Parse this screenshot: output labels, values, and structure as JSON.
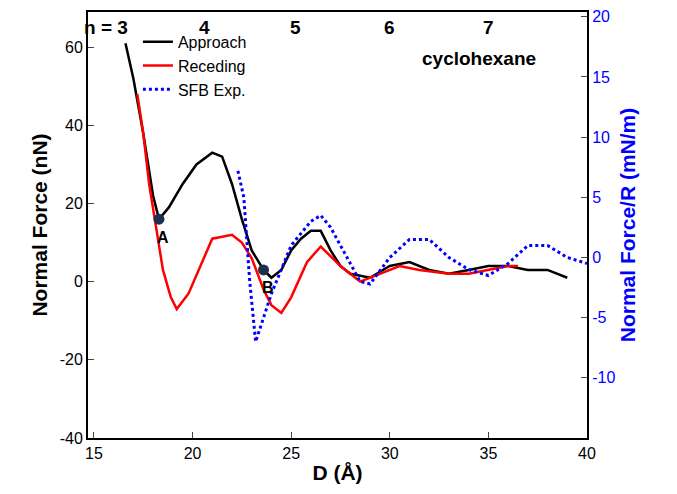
{
  "chart_data": {
    "type": "line",
    "x_label": "D (Å)",
    "y_label": "Normal Force (nN)",
    "y2_label": "Normal Force/R (mN/m)",
    "xlim": [
      14.7,
      40
    ],
    "xticks": [
      15,
      20,
      25,
      30,
      35,
      40
    ],
    "ylim": [
      -40,
      69
    ],
    "yticks": [
      -40,
      -20,
      0,
      20,
      40,
      60
    ],
    "y2lim": [
      -15,
      20.4
    ],
    "y2ticks": [
      -10,
      -5,
      0,
      5,
      10,
      15,
      20
    ],
    "grid": false,
    "legend": "top left",
    "series": [
      {
        "name": "Approach",
        "color": "#000000",
        "line_style": "solid",
        "x": [
          16.6,
          17.0,
          17.5,
          18.0,
          18.3,
          18.8,
          19.5,
          20.2,
          21.0,
          21.5,
          22.0,
          22.5,
          23.0,
          23.6,
          24.0,
          24.5,
          25.0,
          25.5,
          26.0,
          26.5,
          27.0,
          27.5,
          28.0,
          29.0,
          30.0,
          31.0,
          32.0,
          33.0,
          34.0,
          35.0,
          36.0,
          37.0,
          38.0,
          39.0
        ],
        "values": [
          61,
          52,
          38,
          22,
          16,
          19,
          25,
          30,
          33,
          32,
          25,
          16,
          8,
          3,
          1,
          3,
          8,
          11,
          13,
          13,
          8,
          4,
          2,
          1,
          4,
          5,
          3,
          2,
          3,
          4,
          4,
          3,
          3,
          1
        ]
      },
      {
        "name": "Receding",
        "color": "#ff0000",
        "line_style": "solid",
        "x": [
          17.2,
          17.5,
          17.8,
          18.2,
          18.5,
          18.9,
          19.2,
          19.8,
          20.5,
          21.0,
          22.0,
          22.5,
          23.0,
          23.6,
          24.0,
          24.5,
          25.0,
          25.8,
          26.5,
          27.5,
          28.5,
          29.5,
          30.5,
          31.5,
          33.0,
          34.0,
          35.0,
          36.0,
          36.5
        ],
        "values": [
          48,
          38,
          25,
          12,
          3,
          -4,
          -7,
          -3,
          5,
          11,
          12,
          10,
          6,
          -2,
          -6,
          -8,
          -4,
          5,
          9,
          4,
          0,
          2,
          4,
          3,
          2,
          2,
          3,
          4,
          4
        ]
      },
      {
        "name": "SFB Exp.",
        "color": "#0000ff",
        "line_style": "dotted",
        "axis": "y2",
        "x": [
          22.3,
          22.6,
          22.9,
          23.2,
          23.6,
          24.0,
          24.5,
          25.0,
          25.5,
          26.0,
          26.5,
          27.0,
          27.5,
          28.0,
          28.5,
          29.0,
          30.0,
          31.0,
          32.0,
          33.0,
          34.0,
          35.0,
          36.0,
          37.0,
          38.0,
          39.0,
          40.0
        ],
        "values": [
          7.2,
          5,
          -2,
          -7,
          -5,
          -3,
          -1,
          1,
          2,
          3,
          3.5,
          2.5,
          1,
          -0.5,
          -2,
          -2.2,
          0,
          1.5,
          1.5,
          0,
          -1,
          -1.5,
          -0.5,
          1,
          1,
          0,
          -0.5
        ]
      }
    ],
    "points": [
      {
        "label": "A",
        "x": 18.3,
        "y": 16,
        "color": "#1f2f4f"
      },
      {
        "label": "B",
        "x": 23.6,
        "y": 3,
        "color": "#1f2f4f"
      }
    ],
    "annotations": [
      {
        "text": "n = 3",
        "x": 15.6,
        "y": 65
      },
      {
        "text": "4",
        "x": 20.6,
        "y": 65
      },
      {
        "text": "5",
        "x": 25.2,
        "y": 65
      },
      {
        "text": "6",
        "x": 30.0,
        "y": 65
      },
      {
        "text": "7",
        "x": 35.0,
        "y": 65
      },
      {
        "text": "cyclohexane",
        "x": 34.5,
        "y": 57
      }
    ]
  }
}
